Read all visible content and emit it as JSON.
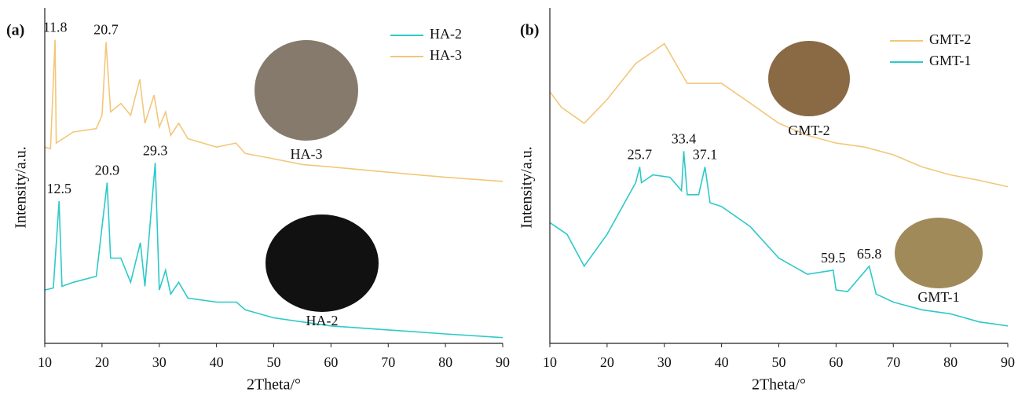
{
  "chart_data": [
    {
      "type": "line",
      "panel_label": "(a)",
      "xlabel": "2Theta/°",
      "ylabel": "Intensity/a.u.",
      "xlim": [
        10,
        90
      ],
      "xticks": [
        10,
        20,
        30,
        40,
        50,
        60,
        70,
        80,
        90
      ],
      "ylim": [
        0,
        100
      ],
      "legend": "upper right",
      "series": [
        {
          "name": "HA-2",
          "color": "#2ec9c9",
          "x": [
            10,
            11.5,
            12.5,
            13,
            15,
            19,
            20.9,
            21.5,
            23.3,
            25,
            26.7,
            27.5,
            29.3,
            30,
            31.1,
            32,
            33.4,
            35,
            40,
            43.5,
            45,
            50,
            55,
            60,
            70,
            80,
            90
          ],
          "values": [
            15.9,
            16.5,
            42.4,
            17,
            18.2,
            20,
            47.9,
            25.4,
            25.4,
            18.2,
            30,
            17,
            53.8,
            15.9,
            21.8,
            14.7,
            18.2,
            13.5,
            12.3,
            12.3,
            10,
            7.6,
            6.4,
            5.2,
            4,
            2.8,
            1.7
          ],
          "peaks": [
            12.5,
            20.9,
            29.3
          ]
        },
        {
          "name": "HA-3",
          "color": "#f2c77a",
          "x": [
            10,
            11,
            11.8,
            12,
            15,
            19,
            20,
            20.7,
            21.5,
            23.3,
            25,
            26.6,
            27.5,
            29.1,
            30,
            31.1,
            32,
            33.4,
            35,
            40,
            43.4,
            45,
            50,
            55,
            60,
            70,
            80,
            90
          ],
          "values": [
            58.5,
            58,
            90.5,
            59.7,
            63,
            64,
            68,
            89.8,
            69,
            71.5,
            68,
            78.7,
            65.6,
            74,
            64.5,
            69,
            62,
            65.6,
            61,
            58.5,
            59.7,
            56.6,
            55,
            53.3,
            52.6,
            51,
            49.5,
            48.3
          ],
          "peaks": [
            11.8,
            20.7
          ]
        }
      ],
      "insets": [
        {
          "caption": "HA-3"
        },
        {
          "caption": "HA-2"
        }
      ]
    },
    {
      "type": "line",
      "panel_label": "(b)",
      "xlabel": "2Theta/°",
      "ylabel": "Intensity/a.u.",
      "xlim": [
        10,
        90
      ],
      "xticks": [
        10,
        20,
        30,
        40,
        50,
        60,
        70,
        80,
        90
      ],
      "ylim": [
        0,
        100
      ],
      "legend": "upper right",
      "series": [
        {
          "name": "GMT-2",
          "color": "#f2c77a",
          "x": [
            10,
            12,
            16,
            20,
            25,
            30,
            34,
            40,
            45,
            50,
            55,
            60,
            65,
            70,
            75,
            80,
            85,
            90
          ],
          "values": [
            75,
            70.4,
            65.6,
            72.7,
            83.4,
            89.3,
            77.5,
            77.5,
            71.6,
            65.6,
            62,
            59.7,
            58.5,
            56.2,
            52.6,
            50.2,
            48.6,
            46.7
          ],
          "peaks": []
        },
        {
          "name": "GMT-1",
          "color": "#2ec9c9",
          "x": [
            10,
            13,
            16,
            20,
            25,
            25.7,
            26,
            28,
            31,
            33,
            33.4,
            34,
            36,
            37.1,
            38,
            40,
            45,
            50,
            55,
            59.5,
            60,
            62,
            65.8,
            67,
            70,
            75,
            80,
            85,
            90
          ],
          "values": [
            36,
            32.5,
            23,
            32.5,
            47.9,
            52.6,
            47.9,
            50.2,
            49.5,
            45.5,
            57.3,
            44.3,
            44.3,
            52.6,
            41.9,
            40.8,
            34.8,
            25.4,
            20.6,
            21.8,
            15.9,
            15.4,
            23,
            14.7,
            12.3,
            10,
            8.8,
            6.4,
            5.2
          ],
          "peaks": [
            25.7,
            33.4,
            37.1,
            59.5,
            65.8
          ]
        }
      ],
      "insets": [
        {
          "caption": "GMT-2"
        },
        {
          "caption": "GMT-1"
        }
      ]
    }
  ]
}
